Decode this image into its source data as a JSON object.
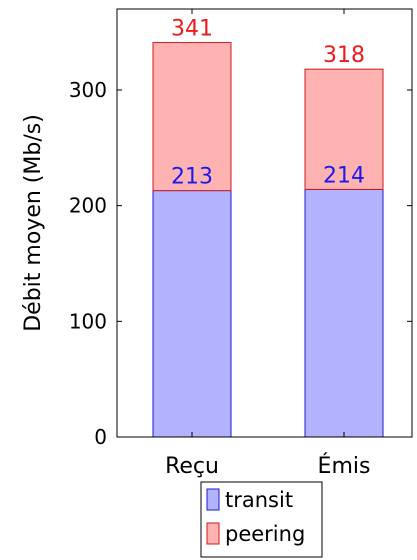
{
  "chart_data": {
    "type": "bar",
    "stacked": true,
    "categories": [
      "Reçu",
      "Émis"
    ],
    "series": [
      {
        "name": "transit",
        "values": [
          213,
          214
        ],
        "fill": "#b2b2ff",
        "stroke": "#1a1acc",
        "label_color": "#1a1aee"
      },
      {
        "name": "peering",
        "values": [
          128,
          104
        ],
        "fill": "#ffb2b2",
        "stroke": "#cc1a1a",
        "label_color": "#ee1a1a"
      }
    ],
    "value_labels": [
      {
        "series": 0,
        "labels": [
          "213",
          "214"
        ]
      },
      {
        "series": 1,
        "labels": [
          "341",
          "318"
        ]
      }
    ],
    "ylabel": "Débit moyen (Mb/s)",
    "xlabel": "",
    "ylim": [
      0,
      370
    ],
    "yticks": [
      0,
      100,
      200,
      300
    ],
    "legend_position": "bottom",
    "grid": false
  }
}
